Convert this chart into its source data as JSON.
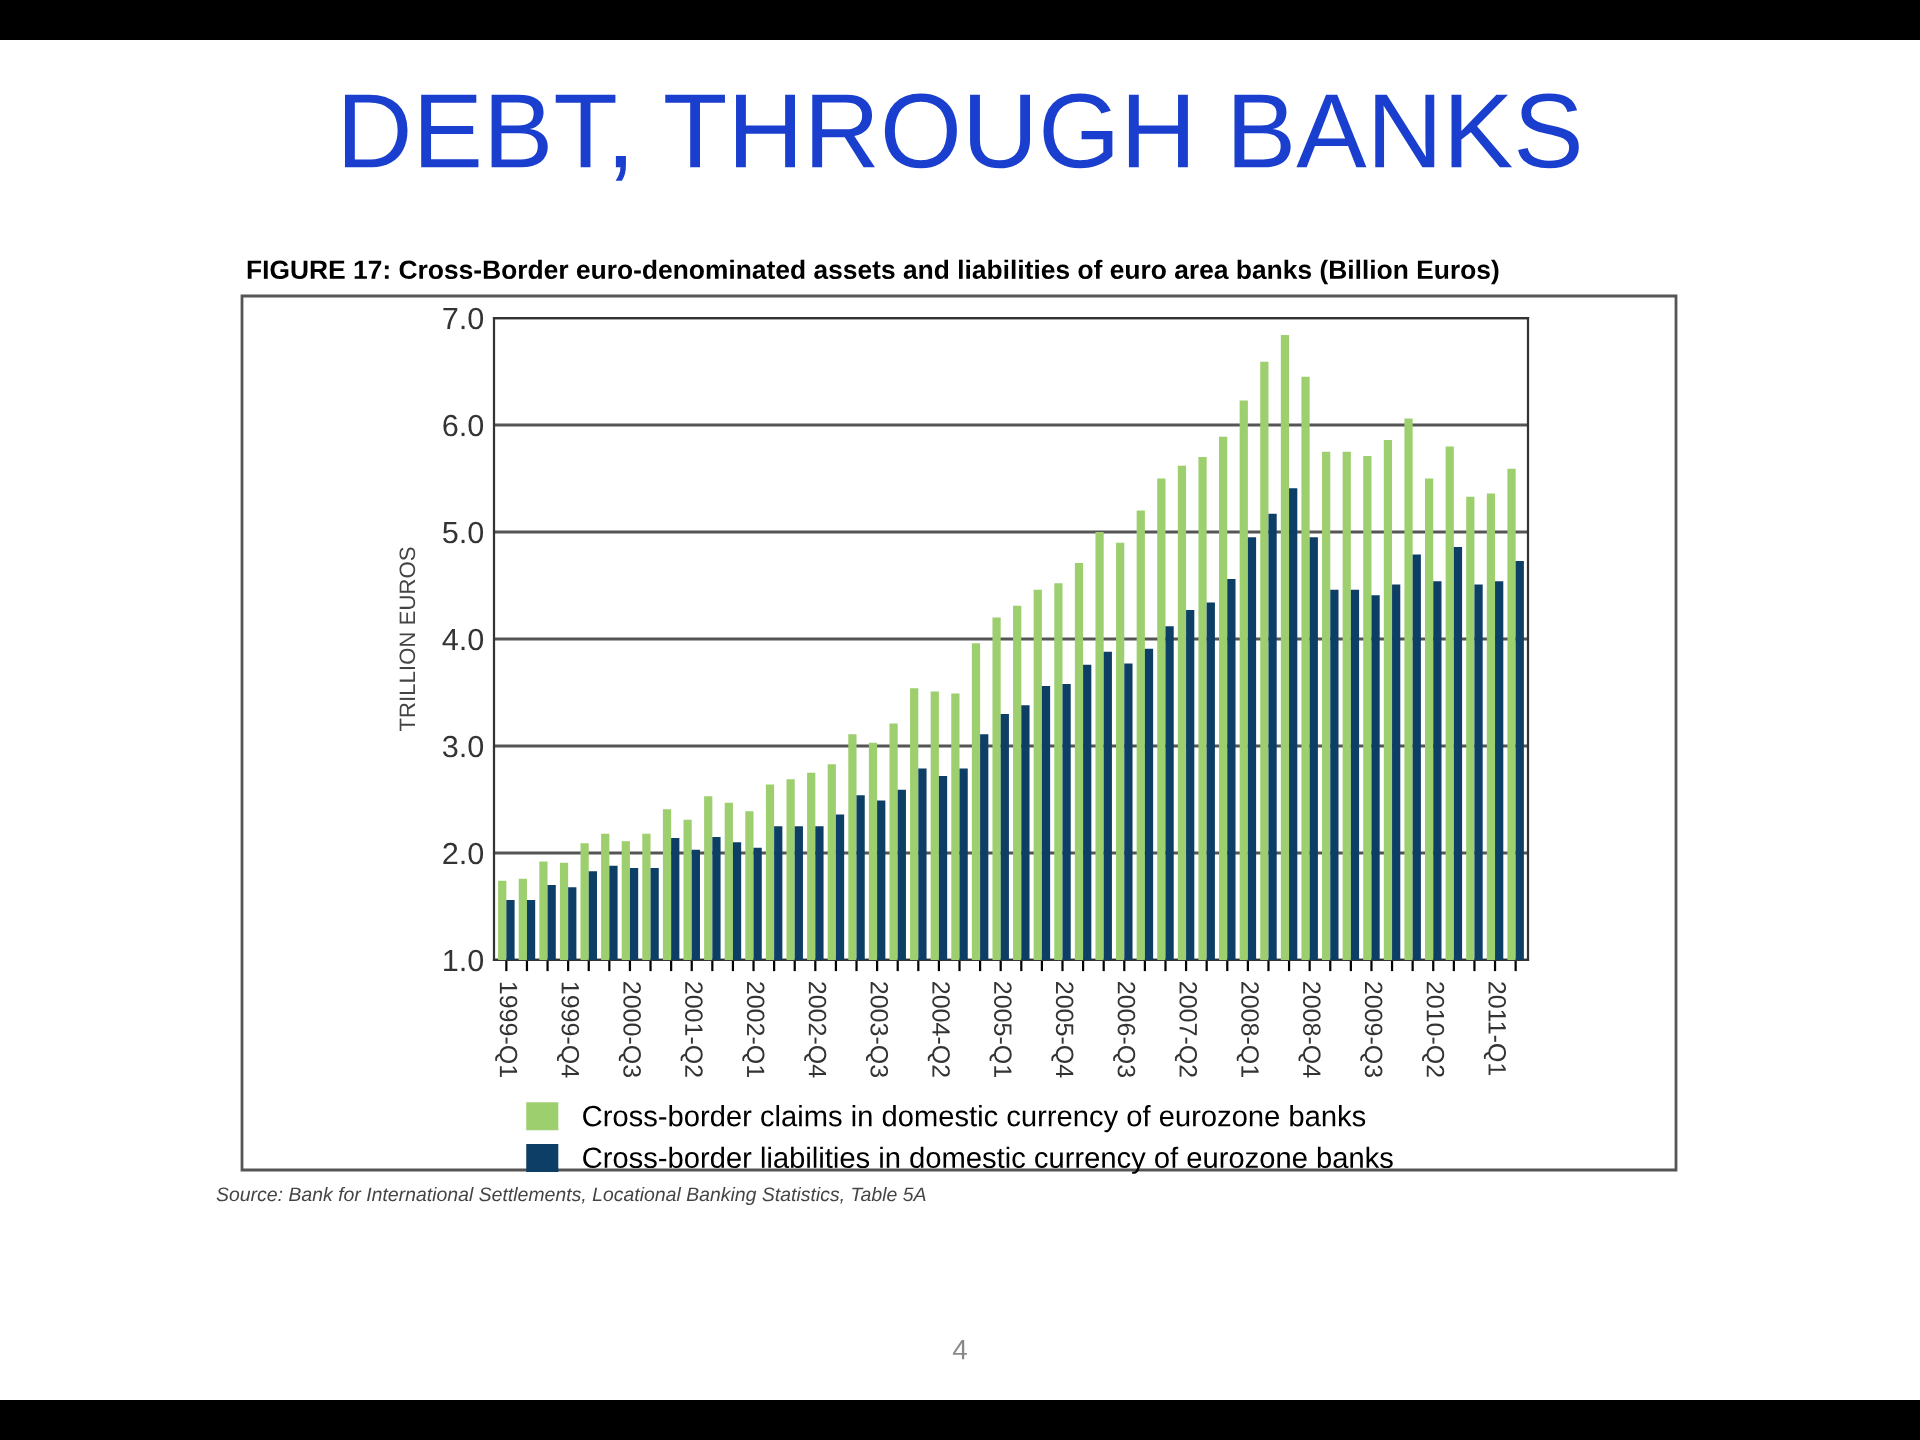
{
  "chart_data": {
    "type": "bar",
    "title": "DEBT, THROUGH BANKS",
    "subtitle": "FIGURE 17: Cross-Border euro-denominated assets and liabilities of euro area banks (Billion Euros)",
    "ylabel": "TRILLION EUROS",
    "annotations": [
      "Source: Bank for International Settlements, Locational Banking Statistics, Table 5A",
      "4"
    ],
    "categories": [
      "1999-Q1",
      null,
      null,
      "1999-Q4",
      null,
      null,
      "2000-Q3",
      null,
      null,
      "2001-Q2",
      null,
      null,
      "2002-Q1",
      null,
      null,
      "2002-Q4",
      null,
      null,
      "2003-Q3",
      null,
      null,
      "2004-Q2",
      null,
      null,
      "2005-Q1",
      null,
      null,
      "2005-Q4",
      null,
      null,
      "2006-Q3",
      null,
      null,
      "2007-Q2",
      null,
      null,
      "2008-Q1",
      null,
      null,
      "2008-Q4",
      null,
      null,
      "2009-Q3",
      null,
      null,
      "2010-Q2",
      null,
      null,
      "2011-Q1",
      null
    ],
    "series": [
      {
        "name": "Cross-border claims in domestic currency of eurozone banks",
        "color": "#9dcf6f",
        "values": [
          1.74,
          1.76,
          1.92,
          1.91,
          2.09,
          2.18,
          2.11,
          2.18,
          2.41,
          2.31,
          2.53,
          2.47,
          2.39,
          2.64,
          2.69,
          2.75,
          2.83,
          3.11,
          3.03,
          3.21,
          3.54,
          3.51,
          3.49,
          3.96,
          4.2,
          4.31,
          4.46,
          4.52,
          4.71,
          5.0,
          4.9,
          5.2,
          5.5,
          5.62,
          5.7,
          5.89,
          6.23,
          6.59,
          6.84,
          6.45,
          5.75,
          5.75,
          5.71,
          5.86,
          6.06,
          5.5,
          5.8,
          5.33,
          5.36,
          5.59
        ]
      },
      {
        "name": "Cross-border liabilities in domestic currency of eurozone banks",
        "color": "#0d3f66",
        "values": [
          1.56,
          1.56,
          1.7,
          1.68,
          1.83,
          1.88,
          1.86,
          1.86,
          2.14,
          2.03,
          2.15,
          2.1,
          2.05,
          2.25,
          2.25,
          2.25,
          2.36,
          2.54,
          2.49,
          2.59,
          2.79,
          2.72,
          2.79,
          3.11,
          3.3,
          3.38,
          3.56,
          3.58,
          3.76,
          3.88,
          3.77,
          3.91,
          4.12,
          4.27,
          4.34,
          4.56,
          4.95,
          5.17,
          5.41,
          4.95,
          4.46,
          4.46,
          4.41,
          4.51,
          4.79,
          4.54,
          4.86,
          4.51,
          4.54,
          4.73
        ]
      }
    ],
    "ylim": [
      1.0,
      7.0
    ],
    "yticks": [
      {
        "value": 1,
        "label": "1.0"
      },
      {
        "value": 2,
        "label": "2.0"
      },
      {
        "value": 3,
        "label": "3.0"
      },
      {
        "value": 4,
        "label": "4.0"
      },
      {
        "value": 5,
        "label": "5.0"
      },
      {
        "value": 6,
        "label": "6.0"
      },
      {
        "value": 7,
        "label": "7.0"
      }
    ],
    "grid": "y",
    "legend": "bottom"
  }
}
